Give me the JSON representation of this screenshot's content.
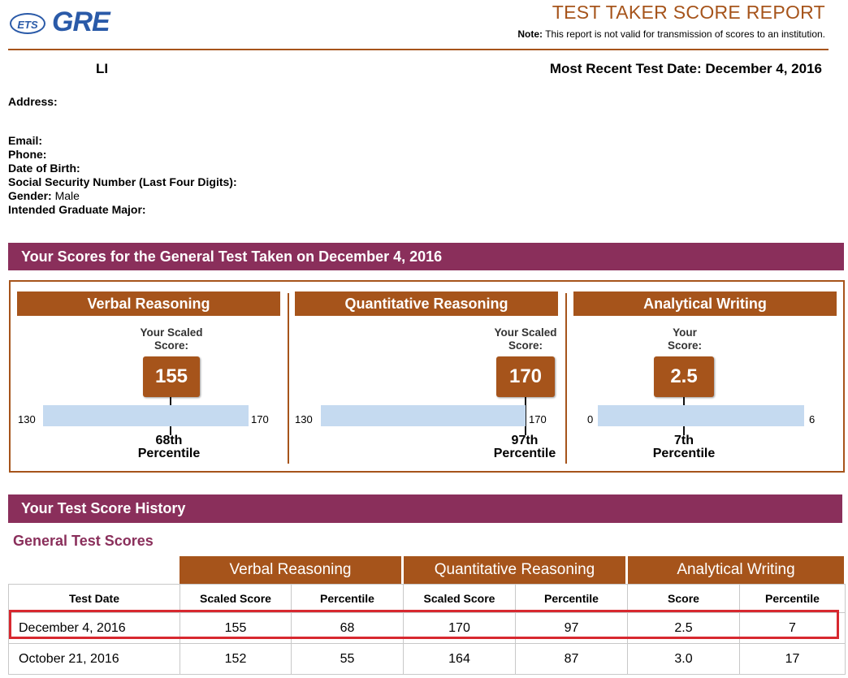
{
  "header": {
    "logo_ets": "ETS",
    "logo_gre": "GRE",
    "title": "TEST TAKER SCORE REPORT",
    "note_label": "Note:",
    "note_text": "This report is not valid for transmission of scores to an institution."
  },
  "candidate": {
    "name": "LI",
    "recent_date": "Most Recent Test Date: December 4, 2016",
    "fields": {
      "address": "Address:",
      "email": "Email:",
      "phone": "Phone:",
      "dob": "Date of Birth:",
      "ssn": "Social Security Number (Last Four Digits):",
      "gender_label": "Gender:",
      "gender_value": "Male",
      "major": "Intended Graduate Major:"
    }
  },
  "scores": {
    "banner": "Your Scores for the General Test Taken on December 4, 2016",
    "sections": [
      {
        "title": "Verbal Reasoning",
        "score_label_1": "Your Scaled",
        "score_label_2": "Score:",
        "score": "155",
        "min": "130",
        "max": "170",
        "percentile_1": "68th",
        "percentile_2": "Percentile",
        "fraction": 0.625
      },
      {
        "title": "Quantitative Reasoning",
        "score_label_1": "Your Scaled",
        "score_label_2": "Score:",
        "score": "170",
        "min": "130",
        "max": "170",
        "percentile_1": "97th",
        "percentile_2": "Percentile",
        "fraction": 1.0
      },
      {
        "title": "Analytical Writing",
        "score_label_1": "Your",
        "score_label_2": "Score:",
        "score": "2.5",
        "min": "0",
        "max": "6",
        "percentile_1": "7th",
        "percentile_2": "Percentile",
        "fraction": 0.4167
      }
    ]
  },
  "history": {
    "banner": "Your Test Score History",
    "subtitle": "General Test Scores",
    "groups": [
      "Verbal Reasoning",
      "Quantitative Reasoning",
      "Analytical Writing"
    ],
    "columns": [
      "Test Date",
      "Scaled Score",
      "Percentile",
      "Scaled Score",
      "Percentile",
      "Score",
      "Percentile"
    ],
    "rows": [
      [
        "December 4, 2016",
        "155",
        "68",
        "170",
        "97",
        "2.5",
        "7"
      ],
      [
        "October 21, 2016",
        "152",
        "55",
        "164",
        "87",
        "3.0",
        "17"
      ]
    ]
  },
  "colors": {
    "brown": "#a6541b",
    "plum": "#8a2f5b",
    "bar": "#c5daf0",
    "highlight": "#d7282f",
    "logo_blue": "#2a5aa8"
  }
}
